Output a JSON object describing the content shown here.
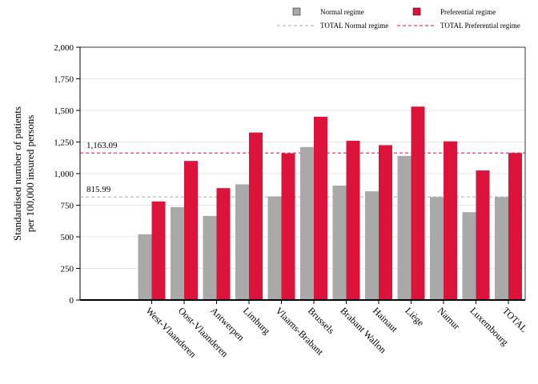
{
  "chart_data": {
    "type": "bar",
    "title": "",
    "xlabel": "",
    "ylabel_lines": [
      "Standardised number of patients",
      "per 100,000 insured persons"
    ],
    "ylim": [
      0,
      2000
    ],
    "yticks": [
      0,
      250,
      500,
      750,
      1000,
      1250,
      1500,
      1750,
      2000
    ],
    "ytick_labels": [
      "0",
      "250",
      "500",
      "750",
      "1,000",
      "1,250",
      "1,500",
      "1,750",
      "2,000"
    ],
    "grid": true,
    "legend_position": "top",
    "categories": [
      "West-Vlaanderen",
      "Oost-Vlaanderen",
      "Antwerpen",
      "Limburg",
      "Vlaams-Brabant",
      "Brussels",
      "Brabant Wallon",
      "Hainaut",
      "Liège",
      "Namur",
      "Luxembourg",
      "TOTAL"
    ],
    "series": [
      {
        "name": "Normal regime",
        "color": "#a9a9a9",
        "values": [
          520,
          735,
          665,
          915,
          820,
          1210,
          905,
          860,
          1140,
          815,
          695,
          815
        ]
      },
      {
        "name": "Preferential regime",
        "color": "#dc143c",
        "values": [
          780,
          1100,
          885,
          1325,
          1160,
          1450,
          1260,
          1225,
          1530,
          1255,
          1025,
          1163
        ]
      }
    ],
    "reference_lines": [
      {
        "name": "TOTAL Normal regime",
        "value": 815.99,
        "label": "815.99",
        "color": "#a9a9a9"
      },
      {
        "name": "TOTAL Preferential regime",
        "value": 1163.09,
        "label": "1,163.09",
        "color": "#dc143c"
      }
    ]
  }
}
